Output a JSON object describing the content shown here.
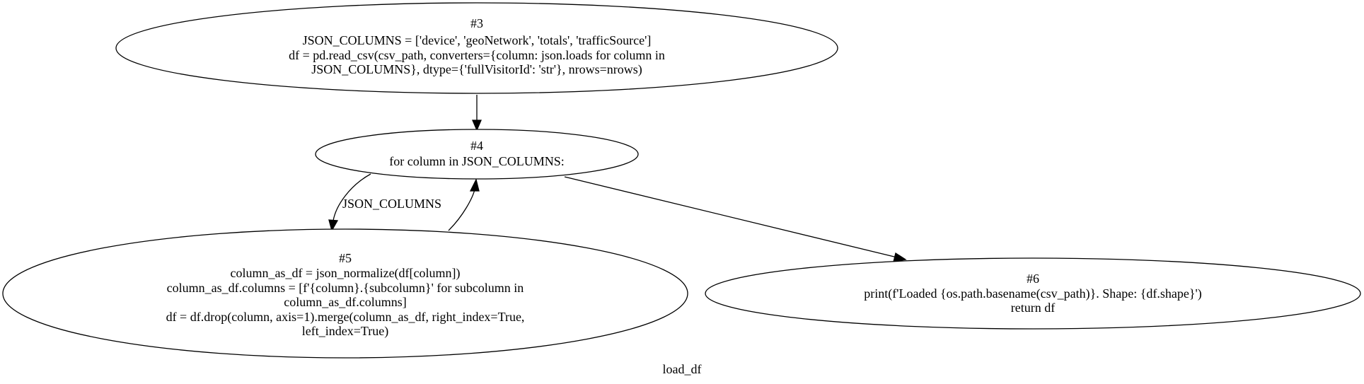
{
  "graph": {
    "label": "load_df",
    "nodes": [
      {
        "id": "n3",
        "lines": [
          "#3",
          "JSON_COLUMNS = ['device', 'geoNetwork', 'totals', 'trafficSource']",
          "df = pd.read_csv(csv_path, converters={column: json.loads for column in",
          "JSON_COLUMNS}, dtype={'fullVisitorId': 'str'}, nrows=nrows)"
        ]
      },
      {
        "id": "n4",
        "lines": [
          "#4",
          "for column in JSON_COLUMNS:"
        ]
      },
      {
        "id": "n5",
        "lines": [
          "#5",
          "column_as_df = json_normalize(df[column])",
          "column_as_df.columns = [f'{column}.{subcolumn}' for subcolumn in",
          "column_as_df.columns]",
          "df = df.drop(column, axis=1).merge(column_as_df, right_index=True,",
          "left_index=True)"
        ]
      },
      {
        "id": "n6",
        "lines": [
          "#6",
          "print(f'Loaded {os.path.basename(csv_path)}. Shape: {df.shape}')",
          "return df"
        ]
      }
    ],
    "edges": [
      {
        "from": "n3",
        "to": "n4",
        "label": ""
      },
      {
        "from": "n4",
        "to": "n5",
        "label": "JSON_COLUMNS"
      },
      {
        "from": "n5",
        "to": "n4",
        "label": ""
      },
      {
        "from": "n4",
        "to": "n6",
        "label": ""
      }
    ]
  }
}
